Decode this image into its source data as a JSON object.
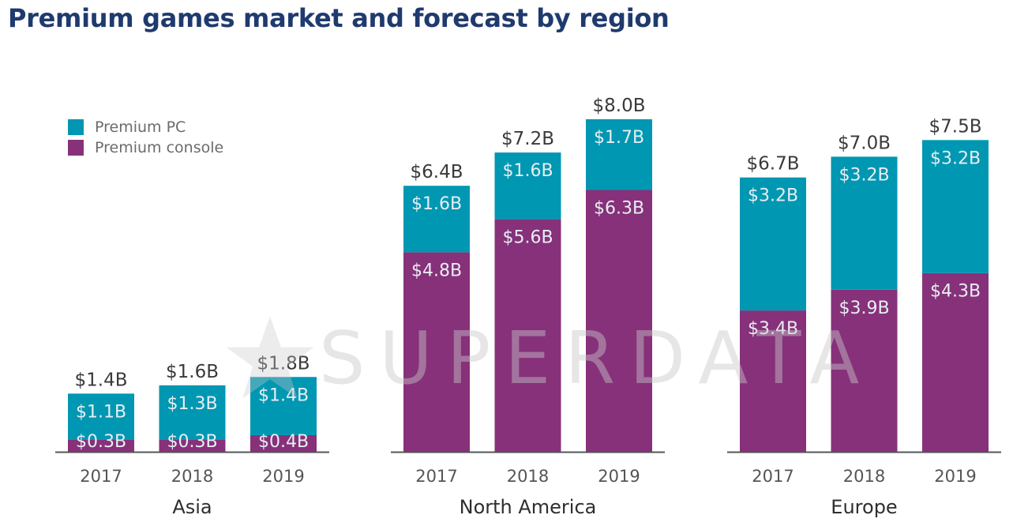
{
  "title": "Premium games market and forecast by region",
  "watermark": "SUPERDATA",
  "colors": {
    "pc": "#0097b2",
    "console": "#86317a",
    "axis": "#555555",
    "total_label": "#3a3a3a",
    "segment_label": "#e8eef2"
  },
  "legend": [
    {
      "name": "Premium PC",
      "color": "#0097b2"
    },
    {
      "name": "Premium console",
      "color": "#86317a"
    }
  ],
  "chart_data": {
    "type": "bar",
    "stacked": true,
    "title": "Premium games market and forecast by region",
    "groups": [
      "Asia",
      "North America",
      "Europe"
    ],
    "categories": [
      "2017",
      "2018",
      "2019"
    ],
    "series": [
      {
        "name": "Premium console",
        "color": "#86317a",
        "values": [
          [
            0.3,
            0.3,
            0.4
          ],
          [
            4.8,
            5.6,
            6.3
          ],
          [
            3.4,
            3.9,
            4.3
          ]
        ],
        "labels": [
          [
            "$0.3B",
            "$0.3B",
            "$0.4B"
          ],
          [
            "$4.8B",
            "$5.6B",
            "$6.3B"
          ],
          [
            "$3.4B",
            "$3.9B",
            "$4.3B"
          ]
        ]
      },
      {
        "name": "Premium PC",
        "color": "#0097b2",
        "values": [
          [
            1.1,
            1.3,
            1.4
          ],
          [
            1.6,
            1.6,
            1.7
          ],
          [
            3.2,
            3.2,
            3.2
          ]
        ],
        "labels": [
          [
            "$1.1B",
            "$1.3B",
            "$1.4B"
          ],
          [
            "$1.6B",
            "$1.6B",
            "$1.7B"
          ],
          [
            "$3.2B",
            "$3.2B",
            "$3.2B"
          ]
        ]
      }
    ],
    "totals": [
      [
        1.4,
        1.6,
        1.8
      ],
      [
        6.4,
        7.2,
        8.0
      ],
      [
        6.7,
        7.0,
        7.5
      ]
    ],
    "total_labels": [
      [
        "$1.4B",
        "$1.6B",
        "$1.8B"
      ],
      [
        "$6.4B",
        "$7.2B",
        "$8.0B"
      ],
      [
        "$6.7B",
        "$7.0B",
        "$7.5B"
      ]
    ],
    "ylim": [
      0,
      8.0
    ],
    "grid": false,
    "legend_position": "top-left"
  }
}
